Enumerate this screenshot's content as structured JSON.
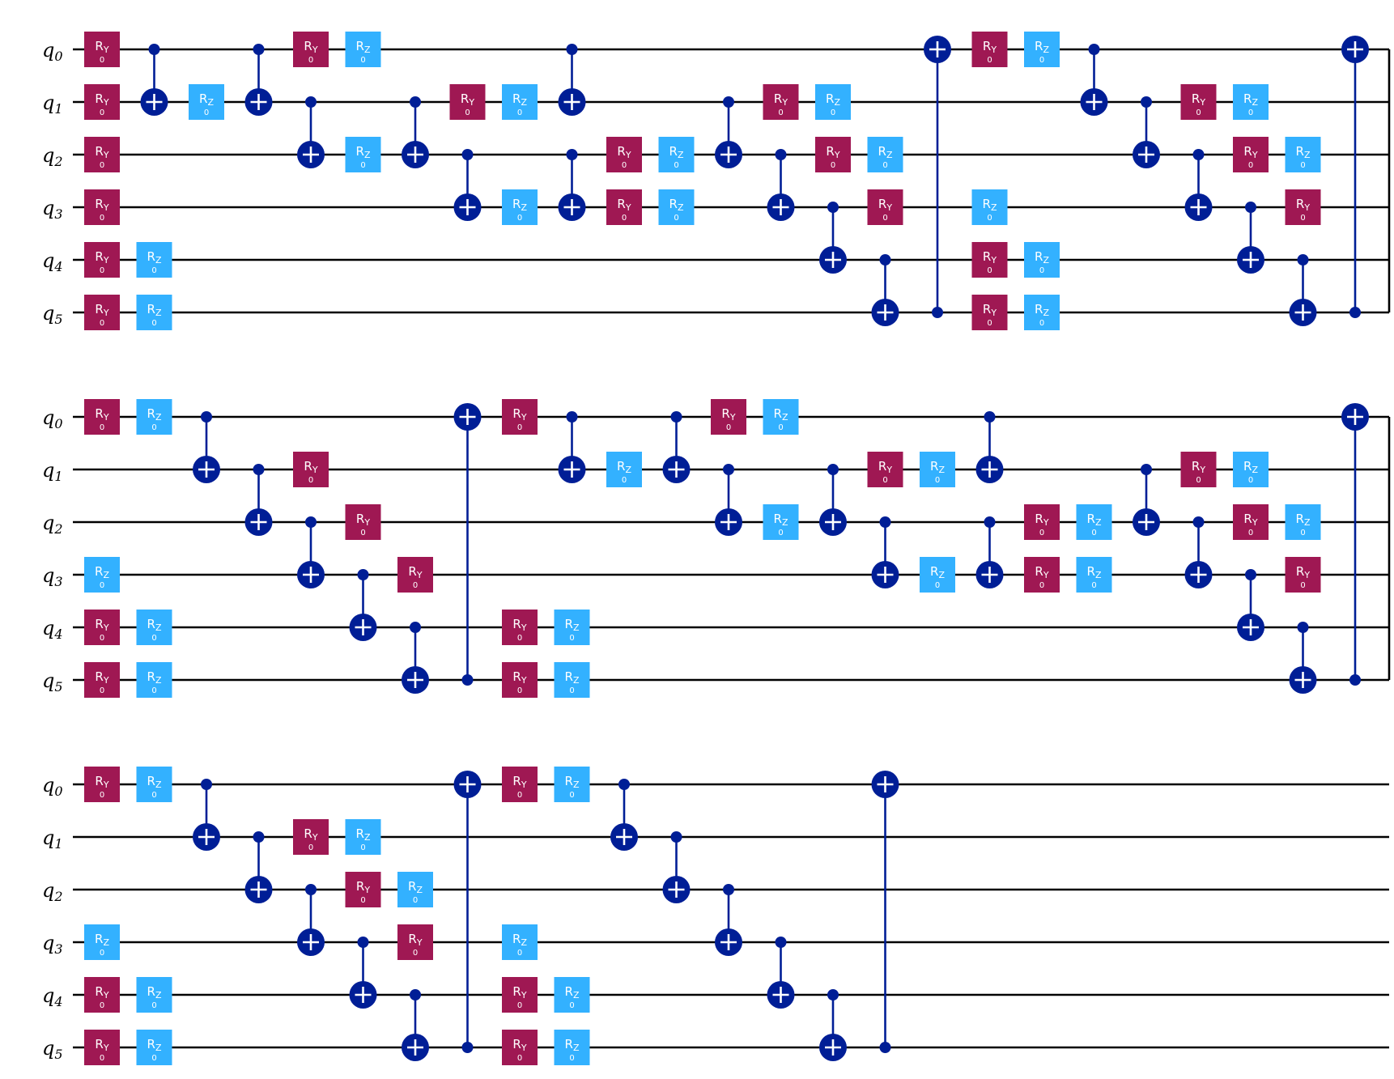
{
  "diagram": {
    "qubit_labels": [
      {
        "base": "q",
        "sub": "0"
      },
      {
        "base": "q",
        "sub": "1"
      },
      {
        "base": "q",
        "sub": "2"
      },
      {
        "base": "q",
        "sub": "3"
      },
      {
        "base": "q",
        "sub": "4"
      },
      {
        "base": "q",
        "sub": "5"
      }
    ],
    "colors": {
      "ry": "#9F1853",
      "rz": "#33B1FF",
      "cx": "#001E96",
      "wire": "#000000"
    },
    "gate_types": {
      "ry": {
        "name": "R",
        "sub": "Y",
        "param": "0"
      },
      "rz": {
        "name": "R",
        "sub": "Z",
        "param": "0"
      }
    },
    "rows": [
      {
        "end_barrier": true,
        "ops": [
          {
            "t": "ry",
            "q": 0,
            "c": 0
          },
          {
            "t": "ry",
            "q": 1,
            "c": 0
          },
          {
            "t": "ry",
            "q": 2,
            "c": 0
          },
          {
            "t": "ry",
            "q": 3,
            "c": 0
          },
          {
            "t": "ry",
            "q": 4,
            "c": 0
          },
          {
            "t": "ry",
            "q": 5,
            "c": 0
          },
          {
            "t": "rz",
            "q": 4,
            "c": 1
          },
          {
            "t": "rz",
            "q": 5,
            "c": 1
          },
          {
            "t": "cx",
            "ctrl": 0,
            "targ": 1,
            "c": 1
          },
          {
            "t": "rz",
            "q": 1,
            "c": 2
          },
          {
            "t": "cx",
            "ctrl": 0,
            "targ": 1,
            "c": 3
          },
          {
            "t": "ry",
            "q": 0,
            "c": 4
          },
          {
            "t": "cx",
            "ctrl": 1,
            "targ": 2,
            "c": 4
          },
          {
            "t": "rz",
            "q": 0,
            "c": 5
          },
          {
            "t": "rz",
            "q": 2,
            "c": 5
          },
          {
            "t": "cx",
            "ctrl": 1,
            "targ": 2,
            "c": 6
          },
          {
            "t": "ry",
            "q": 1,
            "c": 7
          },
          {
            "t": "cx",
            "ctrl": 2,
            "targ": 3,
            "c": 7
          },
          {
            "t": "rz",
            "q": 1,
            "c": 8
          },
          {
            "t": "rz",
            "q": 3,
            "c": 8
          },
          {
            "t": "cx",
            "ctrl": 0,
            "targ": 1,
            "c": 9
          },
          {
            "t": "cx",
            "ctrl": 2,
            "targ": 3,
            "c": 9
          },
          {
            "t": "ry",
            "q": 2,
            "c": 10
          },
          {
            "t": "ry",
            "q": 3,
            "c": 10
          },
          {
            "t": "rz",
            "q": 2,
            "c": 11
          },
          {
            "t": "rz",
            "q": 3,
            "c": 11
          },
          {
            "t": "cx",
            "ctrl": 1,
            "targ": 2,
            "c": 12
          },
          {
            "t": "ry",
            "q": 1,
            "c": 13
          },
          {
            "t": "cx",
            "ctrl": 2,
            "targ": 3,
            "c": 13
          },
          {
            "t": "rz",
            "q": 1,
            "c": 14
          },
          {
            "t": "ry",
            "q": 2,
            "c": 14
          },
          {
            "t": "cx",
            "ctrl": 3,
            "targ": 4,
            "c": 14
          },
          {
            "t": "rz",
            "q": 2,
            "c": 15
          },
          {
            "t": "ry",
            "q": 3,
            "c": 15
          },
          {
            "t": "cx",
            "ctrl": 4,
            "targ": 5,
            "c": 15
          },
          {
            "t": "cx",
            "ctrl": 5,
            "targ": 0,
            "c": 16
          },
          {
            "t": "ry",
            "q": 0,
            "c": 17
          },
          {
            "t": "rz",
            "q": 3,
            "c": 17
          },
          {
            "t": "ry",
            "q": 4,
            "c": 17
          },
          {
            "t": "ry",
            "q": 5,
            "c": 17
          },
          {
            "t": "rz",
            "q": 0,
            "c": 18
          },
          {
            "t": "rz",
            "q": 4,
            "c": 18
          },
          {
            "t": "rz",
            "q": 5,
            "c": 18
          },
          {
            "t": "cx",
            "ctrl": 0,
            "targ": 1,
            "c": 19
          },
          {
            "t": "cx",
            "ctrl": 1,
            "targ": 2,
            "c": 20
          },
          {
            "t": "ry",
            "q": 1,
            "c": 21
          },
          {
            "t": "cx",
            "ctrl": 2,
            "targ": 3,
            "c": 21
          },
          {
            "t": "rz",
            "q": 1,
            "c": 22
          },
          {
            "t": "ry",
            "q": 2,
            "c": 22
          },
          {
            "t": "cx",
            "ctrl": 3,
            "targ": 4,
            "c": 22
          },
          {
            "t": "rz",
            "q": 2,
            "c": 23
          },
          {
            "t": "ry",
            "q": 3,
            "c": 23
          },
          {
            "t": "cx",
            "ctrl": 4,
            "targ": 5,
            "c": 23
          },
          {
            "t": "cx",
            "ctrl": 5,
            "targ": 0,
            "c": 24
          }
        ]
      },
      {
        "end_barrier": true,
        "ops": [
          {
            "t": "ry",
            "q": 0,
            "c": 0
          },
          {
            "t": "rz",
            "q": 3,
            "c": 0
          },
          {
            "t": "ry",
            "q": 4,
            "c": 0
          },
          {
            "t": "ry",
            "q": 5,
            "c": 0
          },
          {
            "t": "rz",
            "q": 0,
            "c": 1
          },
          {
            "t": "rz",
            "q": 4,
            "c": 1
          },
          {
            "t": "rz",
            "q": 5,
            "c": 1
          },
          {
            "t": "cx",
            "ctrl": 0,
            "targ": 1,
            "c": 2
          },
          {
            "t": "cx",
            "ctrl": 1,
            "targ": 2,
            "c": 3
          },
          {
            "t": "ry",
            "q": 1,
            "c": 4
          },
          {
            "t": "cx",
            "ctrl": 2,
            "targ": 3,
            "c": 4
          },
          {
            "t": "ry",
            "q": 2,
            "c": 5
          },
          {
            "t": "cx",
            "ctrl": 3,
            "targ": 4,
            "c": 5
          },
          {
            "t": "ry",
            "q": 3,
            "c": 6
          },
          {
            "t": "cx",
            "ctrl": 4,
            "targ": 5,
            "c": 6
          },
          {
            "t": "cx",
            "ctrl": 5,
            "targ": 0,
            "c": 7
          },
          {
            "t": "ry",
            "q": 0,
            "c": 8
          },
          {
            "t": "ry",
            "q": 4,
            "c": 8
          },
          {
            "t": "ry",
            "q": 5,
            "c": 8
          },
          {
            "t": "cx",
            "ctrl": 0,
            "targ": 1,
            "c": 9
          },
          {
            "t": "rz",
            "q": 4,
            "c": 9
          },
          {
            "t": "rz",
            "q": 5,
            "c": 9
          },
          {
            "t": "rz",
            "q": 1,
            "c": 10
          },
          {
            "t": "cx",
            "ctrl": 0,
            "targ": 1,
            "c": 11
          },
          {
            "t": "ry",
            "q": 0,
            "c": 12
          },
          {
            "t": "cx",
            "ctrl": 1,
            "targ": 2,
            "c": 12
          },
          {
            "t": "rz",
            "q": 0,
            "c": 13
          },
          {
            "t": "rz",
            "q": 2,
            "c": 13
          },
          {
            "t": "cx",
            "ctrl": 1,
            "targ": 2,
            "c": 14
          },
          {
            "t": "ry",
            "q": 1,
            "c": 15
          },
          {
            "t": "cx",
            "ctrl": 2,
            "targ": 3,
            "c": 15
          },
          {
            "t": "rz",
            "q": 1,
            "c": 16
          },
          {
            "t": "rz",
            "q": 3,
            "c": 16
          },
          {
            "t": "cx",
            "ctrl": 0,
            "targ": 1,
            "c": 17
          },
          {
            "t": "cx",
            "ctrl": 2,
            "targ": 3,
            "c": 17
          },
          {
            "t": "ry",
            "q": 2,
            "c": 18
          },
          {
            "t": "ry",
            "q": 3,
            "c": 18
          },
          {
            "t": "rz",
            "q": 2,
            "c": 19
          },
          {
            "t": "rz",
            "q": 3,
            "c": 19
          },
          {
            "t": "cx",
            "ctrl": 1,
            "targ": 2,
            "c": 20
          },
          {
            "t": "ry",
            "q": 1,
            "c": 21
          },
          {
            "t": "cx",
            "ctrl": 2,
            "targ": 3,
            "c": 21
          },
          {
            "t": "rz",
            "q": 1,
            "c": 22
          },
          {
            "t": "ry",
            "q": 2,
            "c": 22
          },
          {
            "t": "cx",
            "ctrl": 3,
            "targ": 4,
            "c": 22
          },
          {
            "t": "rz",
            "q": 2,
            "c": 23
          },
          {
            "t": "ry",
            "q": 3,
            "c": 23
          },
          {
            "t": "cx",
            "ctrl": 4,
            "targ": 5,
            "c": 23
          },
          {
            "t": "cx",
            "ctrl": 5,
            "targ": 0,
            "c": 24
          }
        ]
      },
      {
        "end_barrier": false,
        "ops": [
          {
            "t": "ry",
            "q": 0,
            "c": 0
          },
          {
            "t": "rz",
            "q": 3,
            "c": 0
          },
          {
            "t": "ry",
            "q": 4,
            "c": 0
          },
          {
            "t": "ry",
            "q": 5,
            "c": 0
          },
          {
            "t": "rz",
            "q": 0,
            "c": 1
          },
          {
            "t": "rz",
            "q": 4,
            "c": 1
          },
          {
            "t": "rz",
            "q": 5,
            "c": 1
          },
          {
            "t": "cx",
            "ctrl": 0,
            "targ": 1,
            "c": 2
          },
          {
            "t": "cx",
            "ctrl": 1,
            "targ": 2,
            "c": 3
          },
          {
            "t": "ry",
            "q": 1,
            "c": 4
          },
          {
            "t": "cx",
            "ctrl": 2,
            "targ": 3,
            "c": 4
          },
          {
            "t": "rz",
            "q": 1,
            "c": 5
          },
          {
            "t": "ry",
            "q": 2,
            "c": 5
          },
          {
            "t": "cx",
            "ctrl": 3,
            "targ": 4,
            "c": 5
          },
          {
            "t": "rz",
            "q": 2,
            "c": 6
          },
          {
            "t": "ry",
            "q": 3,
            "c": 6
          },
          {
            "t": "cx",
            "ctrl": 4,
            "targ": 5,
            "c": 6
          },
          {
            "t": "cx",
            "ctrl": 5,
            "targ": 0,
            "c": 7
          },
          {
            "t": "ry",
            "q": 0,
            "c": 8
          },
          {
            "t": "rz",
            "q": 3,
            "c": 8
          },
          {
            "t": "ry",
            "q": 4,
            "c": 8
          },
          {
            "t": "ry",
            "q": 5,
            "c": 8
          },
          {
            "t": "rz",
            "q": 0,
            "c": 9
          },
          {
            "t": "rz",
            "q": 4,
            "c": 9
          },
          {
            "t": "rz",
            "q": 5,
            "c": 9
          },
          {
            "t": "cx",
            "ctrl": 0,
            "targ": 1,
            "c": 10
          },
          {
            "t": "cx",
            "ctrl": 1,
            "targ": 2,
            "c": 11
          },
          {
            "t": "cx",
            "ctrl": 2,
            "targ": 3,
            "c": 12
          },
          {
            "t": "cx",
            "ctrl": 3,
            "targ": 4,
            "c": 13
          },
          {
            "t": "cx",
            "ctrl": 4,
            "targ": 5,
            "c": 14
          },
          {
            "t": "cx",
            "ctrl": 5,
            "targ": 0,
            "c": 15
          }
        ]
      }
    ]
  }
}
